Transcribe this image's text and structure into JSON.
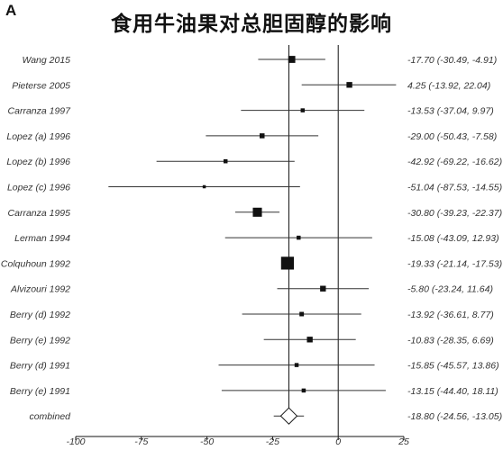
{
  "figure": {
    "panel_letter": "A",
    "title": "食用牛油果对总胆固醇的影响"
  },
  "chart_data": {
    "type": "forest",
    "title": "食用牛油果对总胆固醇的影响",
    "xlim": [
      -100,
      25
    ],
    "xticks": [
      -100,
      -75,
      -50,
      -25,
      0,
      25
    ],
    "null_line": 0,
    "grid": false,
    "studies": [
      {
        "label": "Wang 2015",
        "estimate": -17.7,
        "lower": -30.49,
        "upper": -4.91,
        "ci_text": "-17.70 (-30.49, -4.91)",
        "weight": 3
      },
      {
        "label": "Pieterse 2005",
        "estimate": 4.25,
        "lower": -13.92,
        "upper": 22.04,
        "ci_text": "4.25 (-13.92, 22.04)",
        "weight": 2
      },
      {
        "label": "Carranza 1997",
        "estimate": -13.53,
        "lower": -37.04,
        "upper": 9.97,
        "ci_text": "-13.53 (-37.04, 9.97)",
        "weight": 1
      },
      {
        "label": "Lopez (a) 1996",
        "estimate": -29.0,
        "lower": -50.43,
        "upper": -7.58,
        "ci_text": "-29.00 (-50.43, -7.58)",
        "weight": 1.5
      },
      {
        "label": "Lopez (b) 1996",
        "estimate": -42.92,
        "lower": -69.22,
        "upper": -16.62,
        "ci_text": "-42.92 (-69.22, -16.62)",
        "weight": 1
      },
      {
        "label": "Lopez (c) 1996",
        "estimate": -51.04,
        "lower": -87.53,
        "upper": -14.55,
        "ci_text": "-51.04 (-87.53, -14.55)",
        "weight": 0.6
      },
      {
        "label": "Carranza 1995",
        "estimate": -30.8,
        "lower": -39.23,
        "upper": -22.37,
        "ci_text": "-30.80 (-39.23, -22.37)",
        "weight": 5
      },
      {
        "label": "Lerman 1994",
        "estimate": -15.08,
        "lower": -43.09,
        "upper": 12.93,
        "ci_text": "-15.08 (-43.09, 12.93)",
        "weight": 1
      },
      {
        "label": "Colquhoun 1992",
        "estimate": -19.33,
        "lower": -21.14,
        "upper": -17.53,
        "ci_text": "-19.33 (-21.14, -17.53)",
        "weight": 10
      },
      {
        "label": "Alvizouri 1992",
        "estimate": -5.8,
        "lower": -23.24,
        "upper": 11.64,
        "ci_text": "-5.80 (-23.24, 11.64)",
        "weight": 2
      },
      {
        "label": "Berry (d) 1992",
        "estimate": -13.92,
        "lower": -36.61,
        "upper": 8.77,
        "ci_text": "-13.92 (-36.61, 8.77)",
        "weight": 1.2
      },
      {
        "label": "Berry (e) 1992",
        "estimate": -10.83,
        "lower": -28.35,
        "upper": 6.69,
        "ci_text": "-10.83 (-28.35, 6.69)",
        "weight": 2
      },
      {
        "label": "Berry (d) 1991",
        "estimate": -15.85,
        "lower": -45.57,
        "upper": 13.86,
        "ci_text": "-15.85 (-45.57, 13.86)",
        "weight": 1
      },
      {
        "label": "Berry (e) 1991",
        "estimate": -13.15,
        "lower": -44.4,
        "upper": 18.11,
        "ci_text": "-13.15 (-44.40, 18.11)",
        "weight": 1
      }
    ],
    "combined": {
      "label": "combined",
      "estimate": -18.8,
      "lower": -24.56,
      "upper": -13.05,
      "ci_text": "-18.80 (-24.56, -13.05)"
    }
  }
}
